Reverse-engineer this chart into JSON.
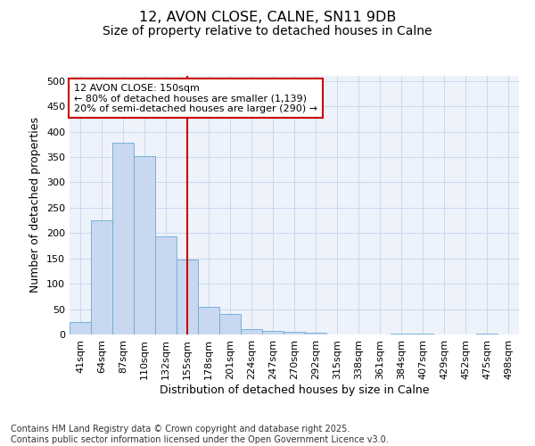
{
  "title_line1": "12, AVON CLOSE, CALNE, SN11 9DB",
  "title_line2": "Size of property relative to detached houses in Calne",
  "xlabel": "Distribution of detached houses by size in Calne",
  "ylabel": "Number of detached properties",
  "categories": [
    "41sqm",
    "64sqm",
    "87sqm",
    "110sqm",
    "132sqm",
    "155sqm",
    "178sqm",
    "201sqm",
    "224sqm",
    "247sqm",
    "270sqm",
    "292sqm",
    "315sqm",
    "338sqm",
    "361sqm",
    "384sqm",
    "407sqm",
    "429sqm",
    "452sqm",
    "475sqm",
    "498sqm"
  ],
  "values": [
    25,
    225,
    378,
    352,
    193,
    148,
    55,
    40,
    10,
    7,
    5,
    3,
    0,
    0,
    0,
    2,
    2,
    0,
    0,
    2,
    0
  ],
  "bar_color": "#c8d8f0",
  "bar_edgecolor": "#6aaad4",
  "grid_color": "#cdd8ee",
  "background_color": "#edf2fb",
  "vline_color": "#cc0000",
  "vline_x_index": 5,
  "annotation_text": "12 AVON CLOSE: 150sqm\n← 80% of detached houses are smaller (1,139)\n20% of semi-detached houses are larger (290) →",
  "annotation_box_color": "#cc0000",
  "ylim": [
    0,
    510
  ],
  "yticks": [
    0,
    50,
    100,
    150,
    200,
    250,
    300,
    350,
    400,
    450,
    500
  ],
  "footnote": "Contains HM Land Registry data © Crown copyright and database right 2025.\nContains public sector information licensed under the Open Government Licence v3.0.",
  "title_fontsize": 11.5,
  "subtitle_fontsize": 10,
  "axis_label_fontsize": 9,
  "tick_fontsize": 8,
  "annotation_fontsize": 8,
  "ylabel_fontsize": 9,
  "footnote_fontsize": 7
}
